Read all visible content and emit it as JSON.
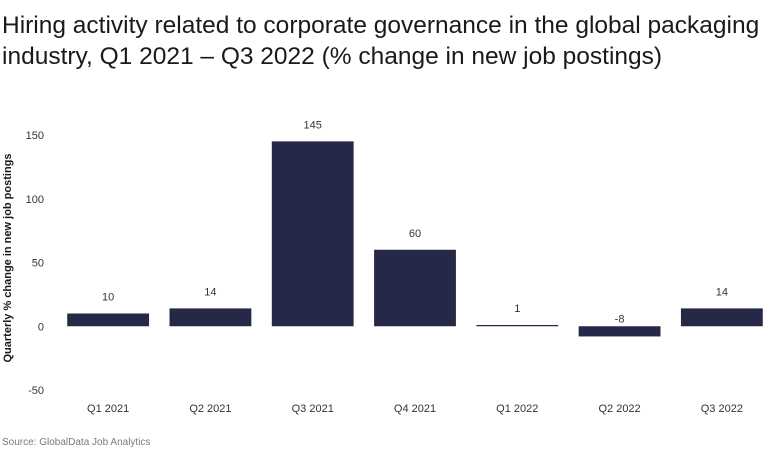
{
  "header": {
    "title": "Hiring activity related to corporate governance in the global packaging industry, Q1 2021 – Q3 2022 (% change in new job postings)"
  },
  "footer": {
    "source": "Source: GlobalData Job Analytics"
  },
  "chart_data": {
    "type": "bar",
    "title": "Hiring activity related to corporate governance in the global packaging industry, Q1 2021 – Q3 2022 (% change in new job postings)",
    "xlabel": "",
    "ylabel": "Quarterly % change in new job postings",
    "categories": [
      "Q1 2021",
      "Q2 2021",
      "Q3 2021",
      "Q4 2021",
      "Q1 2022",
      "Q2 2022",
      "Q3 2022"
    ],
    "values": [
      10,
      14,
      145,
      60,
      1,
      -8,
      14
    ],
    "data_labels": [
      "10",
      "14",
      "145",
      "60",
      "1",
      "-8",
      "14"
    ],
    "ylim": [
      -50,
      150
    ],
    "yticks": [
      -50,
      0,
      50,
      100,
      150
    ],
    "ytick_labels": [
      "-50",
      "0",
      "50",
      "100",
      "150"
    ],
    "grid": false,
    "legend": "none",
    "bar_color": "#262847"
  }
}
